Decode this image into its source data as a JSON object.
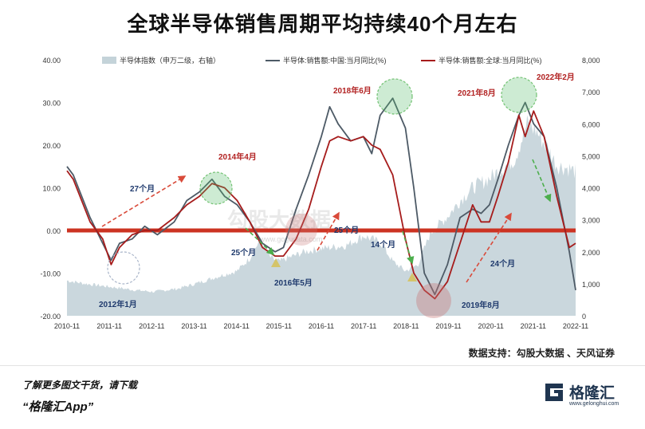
{
  "title": "全球半导体销售周期平均持续40个月左右",
  "source_text": "数据支持：勾股大数据 、天风证券",
  "footer": {
    "line1": "了解更多图文干货，请下载",
    "line2": "“格隆汇App”",
    "brand_name": "格隆汇",
    "brand_url": "www.gelonghui.com"
  },
  "watermark": "勾股大数据",
  "watermark_url": "www.gogudata.com",
  "colors": {
    "area": "#c4d3d9",
    "china": "#4d5a66",
    "global": "#a61c1c",
    "zero_line": "#cc3322",
    "annotation_red": "#b22222",
    "annotation_blue": "#1f3a6d",
    "arrow_red": "#d94a3a",
    "arrow_green": "#4cae4c"
  },
  "chart_data": {
    "type": "line",
    "legend": [
      {
        "key": "index",
        "label": "半导体指数（申万二级，右轴）"
      },
      {
        "key": "china",
        "label": "半导体:销售额:中国:当月同比(%)"
      },
      {
        "key": "global",
        "label": "半导体:销售额:全球:当月同比(%)"
      }
    ],
    "x_ticks": [
      "2010-11",
      "2011-11",
      "2012-11",
      "2013-11",
      "2014-11",
      "2015-11",
      "2016-11",
      "2017-11",
      "2018-11",
      "2019-11",
      "2020-11",
      "2021-11",
      "2022-11"
    ],
    "y_left": {
      "min": -20,
      "max": 40,
      "ticks": [
        "40.00",
        "30.00",
        "20.00",
        "10.00",
        "0.00",
        "-10.00",
        "-20.00"
      ]
    },
    "y_right": {
      "min": 0,
      "max": 8000,
      "ticks": [
        "8,000",
        "7,000",
        "6,000",
        "5,000",
        "4,000",
        "3,000",
        "2,000",
        "1,000",
        "0"
      ]
    },
    "series": [
      {
        "name": "半导体指数（申万二级，右轴）",
        "axis": "right",
        "x": [
          2010.85,
          2011.3,
          2011.9,
          2012.5,
          2012.9,
          2013.5,
          2013.9,
          2014.5,
          2014.9,
          2015.2,
          2015.45,
          2015.7,
          2015.9,
          2016.5,
          2016.9,
          2017.5,
          2017.9,
          2018.3,
          2018.6,
          2018.9,
          2019.2,
          2019.5,
          2019.9,
          2020.2,
          2020.5,
          2020.9,
          2021.2,
          2021.5,
          2021.8,
          2022.0,
          2022.3,
          2022.5,
          2022.8,
          2022.95
        ],
        "values": [
          1100,
          1000,
          900,
          800,
          750,
          850,
          1000,
          1250,
          1400,
          1800,
          2400,
          1800,
          1700,
          2000,
          2100,
          2200,
          2500,
          2300,
          1700,
          1400,
          1600,
          2600,
          3100,
          3600,
          4000,
          4300,
          4600,
          4900,
          6000,
          5800,
          5200,
          4700,
          4600,
          4500
        ]
      },
      {
        "name": "半导体:销售额:中国:当月同比(%)",
        "axis": "left",
        "x": [
          2010.85,
          2011.0,
          2011.4,
          2011.7,
          2011.9,
          2012.1,
          2012.4,
          2012.7,
          2013.0,
          2013.4,
          2013.7,
          2014.0,
          2014.3,
          2014.6,
          2014.9,
          2015.2,
          2015.5,
          2015.8,
          2016.0,
          2016.3,
          2016.6,
          2016.9,
          2017.1,
          2017.3,
          2017.6,
          2017.9,
          2018.1,
          2018.3,
          2018.6,
          2018.9,
          2019.1,
          2019.35,
          2019.6,
          2019.9,
          2020.2,
          2020.5,
          2020.7,
          2020.9,
          2021.1,
          2021.35,
          2021.6,
          2021.75,
          2021.95,
          2022.2,
          2022.5,
          2022.8,
          2022.95
        ],
        "values": [
          15,
          13,
          3,
          -3,
          -7,
          -3,
          -2,
          1,
          -1,
          2,
          7,
          9,
          12,
          8,
          6,
          2,
          -3,
          -5,
          -4,
          5,
          13,
          22,
          29,
          25,
          21,
          22,
          18,
          27,
          31,
          24,
          10,
          -10,
          -15,
          -8,
          3,
          5,
          4,
          6,
          12,
          20,
          27,
          30,
          25,
          22,
          10,
          -5,
          -14
        ]
      },
      {
        "name": "半导体:销售额:全球:当月同比(%)",
        "axis": "left",
        "x": [
          2010.85,
          2011.0,
          2011.4,
          2011.7,
          2011.9,
          2012.1,
          2012.4,
          2012.7,
          2013.0,
          2013.4,
          2013.7,
          2014.0,
          2014.3,
          2014.6,
          2014.9,
          2015.2,
          2015.5,
          2015.8,
          2016.0,
          2016.3,
          2016.6,
          2016.9,
          2017.1,
          2017.3,
          2017.6,
          2017.9,
          2018.1,
          2018.3,
          2018.6,
          2018.9,
          2019.1,
          2019.35,
          2019.6,
          2019.9,
          2020.2,
          2020.5,
          2020.7,
          2020.9,
          2021.1,
          2021.35,
          2021.6,
          2021.75,
          2021.95,
          2022.2,
          2022.5,
          2022.8,
          2022.95
        ],
        "values": [
          14,
          12,
          2,
          -2,
          -8,
          -4,
          -1,
          0,
          0,
          3,
          6,
          8,
          11,
          10,
          7,
          2,
          -4,
          -6,
          -6,
          -2,
          5,
          15,
          21,
          22,
          21,
          22,
          20,
          19,
          13,
          -2,
          -10,
          -14,
          -16,
          -12,
          -3,
          6,
          2,
          2,
          8,
          16,
          27,
          22,
          28,
          22,
          8,
          -4,
          -3
        ]
      }
    ],
    "annotations": [
      {
        "text": "27个月",
        "kind": "duration"
      },
      {
        "text": "2014年4月",
        "kind": "peak"
      },
      {
        "text": "25个月",
        "kind": "duration"
      },
      {
        "text": "2016年5月",
        "kind": "trough"
      },
      {
        "text": "2018年6月",
        "kind": "peak"
      },
      {
        "text": "25个月",
        "kind": "duration"
      },
      {
        "text": "14个月",
        "kind": "duration"
      },
      {
        "text": "2019年8月",
        "kind": "trough"
      },
      {
        "text": "2021年8月",
        "kind": "peak"
      },
      {
        "text": "2022年2月",
        "kind": "peak"
      },
      {
        "text": "24个月",
        "kind": "duration"
      },
      {
        "text": "2012年1月",
        "kind": "trough"
      }
    ]
  }
}
